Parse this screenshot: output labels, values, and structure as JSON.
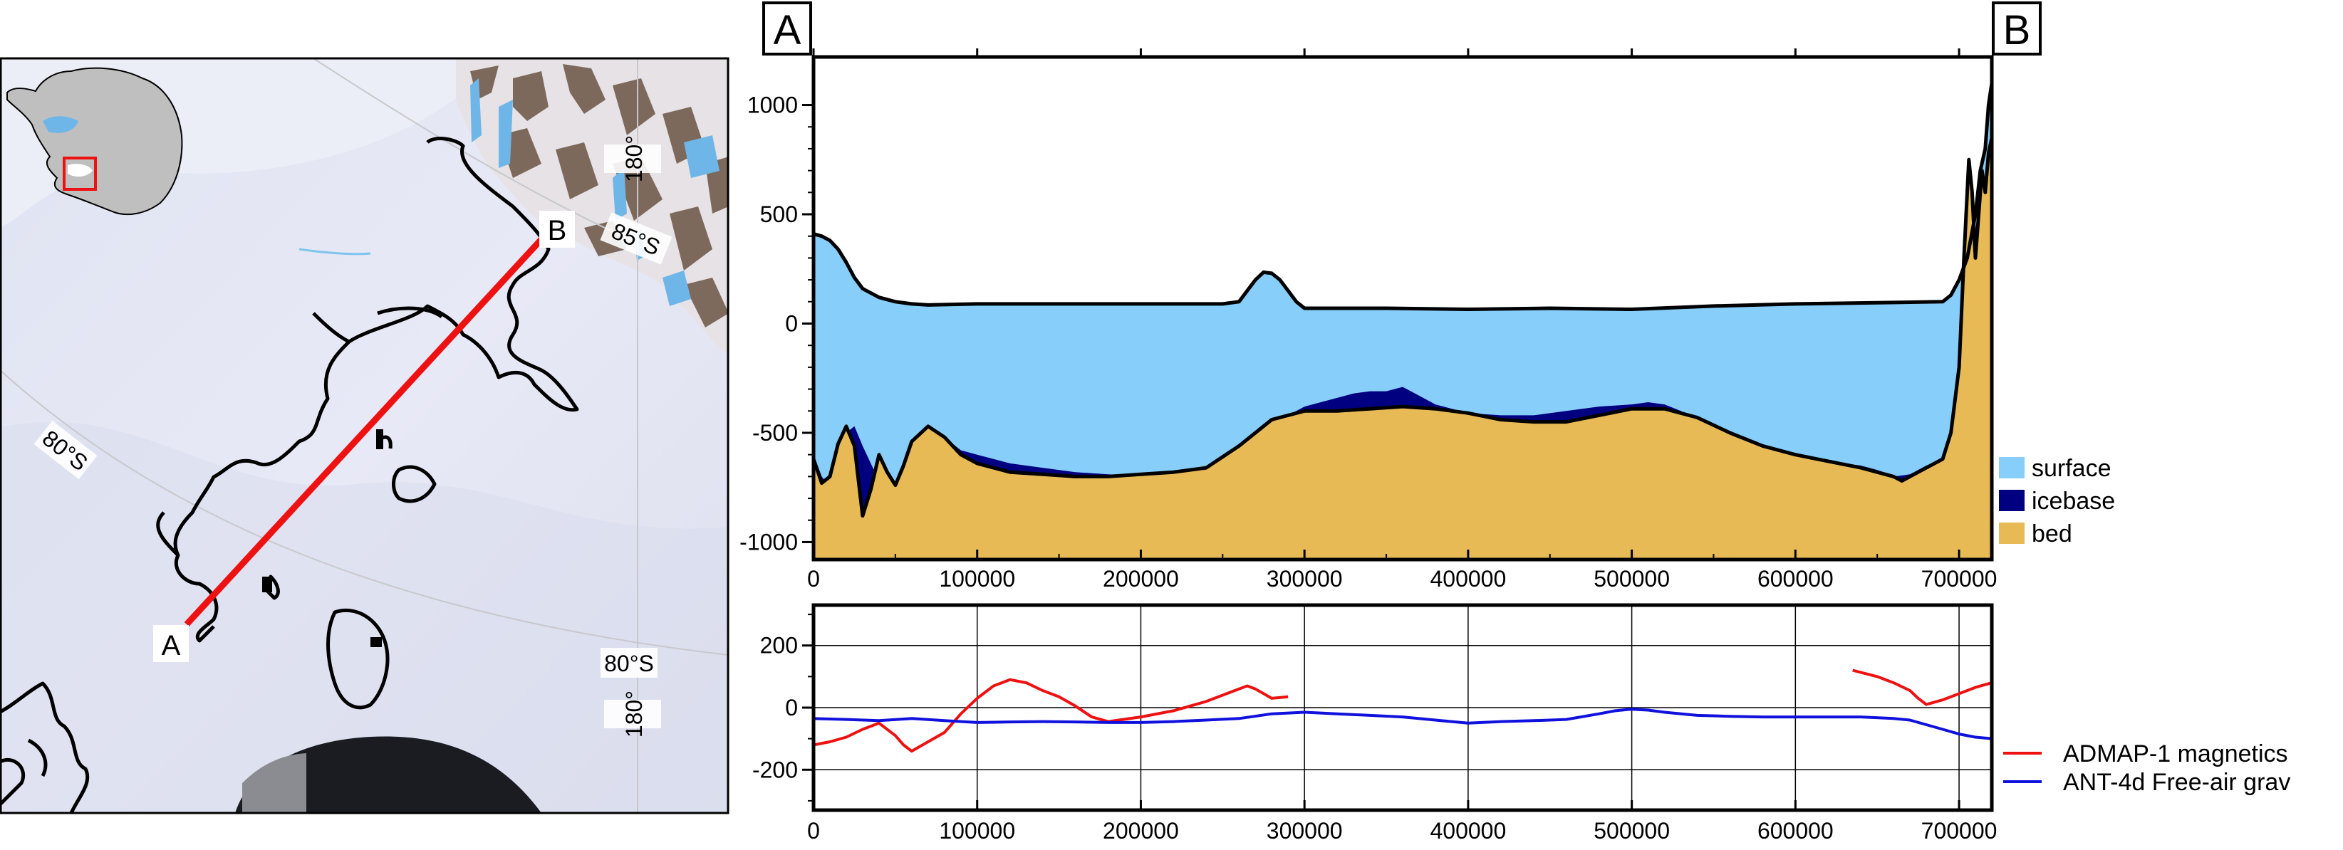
{
  "map": {
    "point_a_label": "A",
    "point_b_label": "B",
    "graticule_labels": [
      "180°",
      "85°S",
      "80°S",
      "80°S",
      "180°"
    ],
    "inset": "antarctica-overview-with-red-box",
    "colors": {
      "ice": "#e6e8f4",
      "rock": "#6b5444",
      "blue_ice": "#6fb6e8",
      "profile_line": "#ee1111",
      "inset_land": "#bfbfbf",
      "inset_box": "#ee1111"
    }
  },
  "chart_data": [
    {
      "type": "area",
      "panel": "cross-section",
      "end_labels": {
        "left": "A",
        "right": "B"
      },
      "xlim": [
        0,
        720000
      ],
      "ylim": [
        -1080,
        1220
      ],
      "x_ticks": [
        0,
        100000,
        200000,
        300000,
        400000,
        500000,
        600000,
        700000
      ],
      "x_tick_labels": [
        "0",
        "100000",
        "200000",
        "300000",
        "400000",
        "500000",
        "600000",
        "700000"
      ],
      "y_ticks": [
        1000,
        500,
        0,
        -500,
        -1000
      ],
      "y_tick_labels": [
        "1000",
        "500",
        "0",
        "-500",
        "-1000"
      ],
      "legend_position": "right",
      "series": [
        {
          "name": "surface",
          "color": "#87cefa",
          "x": [
            0,
            5000,
            10000,
            15000,
            20000,
            25000,
            30000,
            40000,
            50000,
            60000,
            70000,
            100000,
            150000,
            200000,
            250000,
            260000,
            265000,
            270000,
            275000,
            280000,
            285000,
            290000,
            295000,
            300000,
            350000,
            400000,
            450000,
            500000,
            550000,
            600000,
            650000,
            690000,
            695000,
            700000,
            705000,
            710000,
            713000,
            716000,
            718000,
            720000
          ],
          "y": [
            410,
            400,
            380,
            340,
            280,
            210,
            160,
            120,
            100,
            90,
            85,
            90,
            90,
            90,
            90,
            100,
            150,
            200,
            235,
            230,
            200,
            150,
            100,
            70,
            70,
            65,
            70,
            65,
            80,
            90,
            95,
            100,
            130,
            200,
            300,
            500,
            700,
            800,
            1000,
            1100
          ]
        },
        {
          "name": "icebase",
          "color": "#000080",
          "x": [
            0,
            5000,
            10000,
            15000,
            20000,
            25000,
            30000,
            40000,
            50000,
            60000,
            70000,
            80000,
            90000,
            100000,
            120000,
            140000,
            160000,
            180000,
            200000,
            220000,
            240000,
            260000,
            280000,
            300000,
            310000,
            320000,
            330000,
            340000,
            350000,
            360000,
            370000,
            380000,
            400000,
            420000,
            440000,
            460000,
            480000,
            500000,
            510000,
            520000,
            530000,
            550000,
            580000,
            600000,
            620000,
            640000,
            650000,
            660000,
            670000,
            680000,
            690000,
            700000,
            705000,
            710000,
            712000,
            715000,
            718000,
            720000
          ],
          "y": [
            -600,
            -700,
            -750,
            -640,
            -500,
            -470,
            -560,
            -720,
            -760,
            -560,
            -480,
            -520,
            -580,
            -600,
            -640,
            -660,
            -680,
            -690,
            -700,
            -690,
            -670,
            -580,
            -460,
            -380,
            -360,
            -340,
            -320,
            -310,
            -310,
            -290,
            -330,
            -370,
            -410,
            -420,
            -420,
            -400,
            -380,
            -370,
            -360,
            -370,
            -400,
            -480,
            -560,
            -600,
            -630,
            -650,
            -670,
            -700,
            -690,
            -650,
            -620,
            -580,
            -500,
            -200,
            200,
            600,
            800,
            850
          ]
        },
        {
          "name": "bed",
          "color": "#e8ba55",
          "x": [
            0,
            5000,
            10000,
            15000,
            20000,
            25000,
            30000,
            35000,
            40000,
            45000,
            50000,
            55000,
            60000,
            70000,
            80000,
            90000,
            100000,
            120000,
            140000,
            160000,
            180000,
            200000,
            220000,
            240000,
            260000,
            280000,
            300000,
            320000,
            340000,
            360000,
            380000,
            400000,
            420000,
            440000,
            460000,
            480000,
            500000,
            520000,
            540000,
            560000,
            580000,
            600000,
            620000,
            640000,
            660000,
            665000,
            670000,
            680000,
            690000,
            695000,
            700000,
            703000,
            706000,
            708000,
            710000,
            712000,
            714000,
            716000,
            718000,
            720000
          ],
          "y": [
            -620,
            -730,
            -700,
            -550,
            -470,
            -560,
            -880,
            -760,
            -600,
            -680,
            -740,
            -650,
            -540,
            -470,
            -520,
            -600,
            -640,
            -680,
            -690,
            -700,
            -700,
            -690,
            -680,
            -660,
            -560,
            -440,
            -400,
            -400,
            -390,
            -380,
            -390,
            -410,
            -440,
            -450,
            -450,
            -420,
            -390,
            -390,
            -430,
            -500,
            -560,
            -600,
            -630,
            -660,
            -700,
            -720,
            -700,
            -660,
            -620,
            -500,
            -200,
            300,
            750,
            600,
            300,
            500,
            700,
            600,
            780,
            850
          ]
        }
      ]
    },
    {
      "type": "line",
      "panel": "geophysics",
      "xlim": [
        0,
        720000
      ],
      "ylim": [
        -330,
        330
      ],
      "x_ticks": [
        0,
        100000,
        200000,
        300000,
        400000,
        500000,
        600000,
        700000
      ],
      "x_tick_labels": [
        "0",
        "100000",
        "200000",
        "300000",
        "400000",
        "500000",
        "600000",
        "700000"
      ],
      "y_ticks": [
        200,
        0,
        -200
      ],
      "y_tick_labels": [
        "200",
        "0",
        "-200"
      ],
      "grid": true,
      "legend_position": "right",
      "series": [
        {
          "name": "ADMAP-1 magnetics",
          "color": "#ee1111",
          "x": [
            0,
            10000,
            20000,
            30000,
            40000,
            50000,
            55000,
            60000,
            70000,
            80000,
            90000,
            100000,
            110000,
            120000,
            130000,
            140000,
            150000,
            160000,
            170000,
            180000,
            200000,
            220000,
            240000,
            250000,
            260000,
            265000,
            270000,
            280000,
            290000
          ],
          "y": [
            -120,
            -110,
            -95,
            -70,
            -50,
            -90,
            -120,
            -140,
            -110,
            -80,
            -20,
            30,
            70,
            90,
            80,
            55,
            35,
            5,
            -30,
            -45,
            -30,
            -10,
            20,
            40,
            60,
            70,
            60,
            30,
            35
          ]
        },
        {
          "name": "ADMAP-1 magnetics",
          "color": "#ee1111",
          "x": [
            635000,
            650000,
            660000,
            670000,
            675000,
            680000,
            690000,
            700000,
            710000,
            720000
          ],
          "y": [
            120,
            100,
            80,
            55,
            30,
            10,
            25,
            45,
            65,
            80
          ]
        },
        {
          "name": "ANT-4d Free-air grav",
          "color": "#1111dd",
          "x": [
            0,
            20000,
            40000,
            60000,
            80000,
            100000,
            120000,
            140000,
            160000,
            180000,
            200000,
            220000,
            240000,
            260000,
            280000,
            300000,
            320000,
            340000,
            360000,
            380000,
            400000,
            420000,
            440000,
            460000,
            480000,
            490000,
            500000,
            510000,
            520000,
            540000,
            560000,
            580000,
            600000,
            620000,
            640000,
            660000,
            670000,
            680000,
            690000,
            700000,
            710000,
            720000
          ],
          "y": [
            -35,
            -38,
            -42,
            -35,
            -42,
            -48,
            -46,
            -45,
            -46,
            -48,
            -48,
            -45,
            -40,
            -35,
            -20,
            -15,
            -20,
            -25,
            -30,
            -40,
            -50,
            -45,
            -42,
            -38,
            -20,
            -10,
            -5,
            -8,
            -15,
            -25,
            -28,
            -30,
            -30,
            -30,
            -30,
            -35,
            -40,
            -55,
            -70,
            -85,
            -95,
            -100
          ]
        }
      ],
      "legend_labels": [
        "ADMAP-1 magnetics",
        "ANT-4d Free-air grav"
      ]
    }
  ]
}
